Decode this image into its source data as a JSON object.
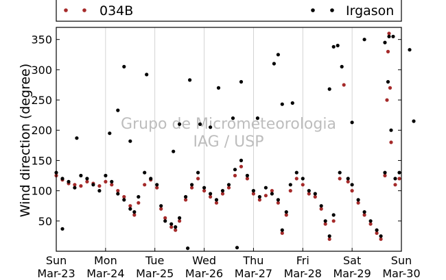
{
  "chart_data": {
    "type": "scatter",
    "ylabel": "Wind direction (degree)",
    "xlabel": "",
    "ylim": [
      0,
      370
    ],
    "xlim": [
      "2014-03-23",
      "2014-03-30"
    ],
    "yticks": [
      50,
      100,
      150,
      200,
      250,
      300,
      350
    ],
    "xticks": [
      {
        "day": "Sun",
        "date": "Mar-23"
      },
      {
        "day": "Mon",
        "date": "Mar-24"
      },
      {
        "day": "Tue",
        "date": "Mar-25"
      },
      {
        "day": "Wed",
        "date": "Mar-26"
      },
      {
        "day": "Thu",
        "date": "Mar-27"
      },
      {
        "day": "Fri",
        "date": "Mar-28"
      },
      {
        "day": "Sat",
        "date": "Mar-29"
      },
      {
        "day": "Sun",
        "date": "Mar-30"
      }
    ],
    "grid": "vertical",
    "legend": {
      "placement": "top, above plot"
    },
    "watermark": [
      "Grupo de Micrometeorologia",
      "IAG / USP"
    ],
    "series": [
      {
        "name": "034B",
        "color": "#a52a2a",
        "points": [
          [
            "2014-03-23 00:00",
            125
          ],
          [
            "2014-03-23 03:00",
            118
          ],
          [
            "2014-03-23 06:00",
            112
          ],
          [
            "2014-03-23 09:00",
            110
          ],
          [
            "2014-03-23 12:00",
            108
          ],
          [
            "2014-03-23 15:00",
            115
          ],
          [
            "2014-03-23 18:00",
            112
          ],
          [
            "2014-03-23 21:00",
            108
          ],
          [
            "2014-03-24 00:00",
            115
          ],
          [
            "2014-03-24 03:00",
            110
          ],
          [
            "2014-03-24 06:00",
            100
          ],
          [
            "2014-03-24 09:00",
            90
          ],
          [
            "2014-03-24 12:00",
            75
          ],
          [
            "2014-03-24 14:00",
            60
          ],
          [
            "2014-03-24 16:00",
            80
          ],
          [
            "2014-03-24 19:00",
            110
          ],
          [
            "2014-03-24 22:00",
            118
          ],
          [
            "2014-03-25 01:00",
            105
          ],
          [
            "2014-03-25 03:00",
            70
          ],
          [
            "2014-03-25 05:00",
            55
          ],
          [
            "2014-03-25 08:00",
            40
          ],
          [
            "2014-03-25 10:00",
            35
          ],
          [
            "2014-03-25 12:00",
            50
          ],
          [
            "2014-03-25 15:00",
            85
          ],
          [
            "2014-03-25 18:00",
            105
          ],
          [
            "2014-03-25 21:00",
            120
          ],
          [
            "2014-03-26 00:00",
            100
          ],
          [
            "2014-03-26 03:00",
            90
          ],
          [
            "2014-03-26 06:00",
            80
          ],
          [
            "2014-03-26 09:00",
            95
          ],
          [
            "2014-03-26 12:00",
            105
          ],
          [
            "2014-03-26 15:00",
            125
          ],
          [
            "2014-03-26 18:00",
            140
          ],
          [
            "2014-03-26 21:00",
            120
          ],
          [
            "2014-03-27 00:00",
            95
          ],
          [
            "2014-03-27 03:00",
            85
          ],
          [
            "2014-03-27 06:00",
            92
          ],
          [
            "2014-03-27 09:00",
            100
          ],
          [
            "2014-03-27 12:00",
            80
          ],
          [
            "2014-03-27 14:00",
            30
          ],
          [
            "2014-03-27 16:00",
            60
          ],
          [
            "2014-03-27 18:00",
            100
          ],
          [
            "2014-03-27 21:00",
            120
          ],
          [
            "2014-03-28 00:00",
            110
          ],
          [
            "2014-03-28 03:00",
            95
          ],
          [
            "2014-03-28 06:00",
            90
          ],
          [
            "2014-03-28 09:00",
            70
          ],
          [
            "2014-03-28 11:00",
            45
          ],
          [
            "2014-03-28 13:00",
            20
          ],
          [
            "2014-03-28 15:00",
            50
          ],
          [
            "2014-03-28 18:00",
            120
          ],
          [
            "2014-03-28 20:00",
            275
          ],
          [
            "2014-03-28 22:00",
            115
          ],
          [
            "2014-03-29 00:00",
            100
          ],
          [
            "2014-03-29 03:00",
            80
          ],
          [
            "2014-03-29 06:00",
            60
          ],
          [
            "2014-03-29 09:00",
            45
          ],
          [
            "2014-03-29 12:00",
            30
          ],
          [
            "2014-03-29 14:00",
            20
          ],
          [
            "2014-03-29 16:00",
            125
          ],
          [
            "2014-03-29 17:00",
            250
          ],
          [
            "2014-03-29 17:30",
            330
          ],
          [
            "2014-03-29 18:00",
            360
          ],
          [
            "2014-03-29 18:30",
            270
          ],
          [
            "2014-03-29 19:00",
            180
          ],
          [
            "2014-03-29 21:00",
            110
          ],
          [
            "2014-03-29 23:00",
            120
          ]
        ]
      },
      {
        "name": "Irgason",
        "color": "#000000",
        "points": [
          [
            "2014-03-23 00:00",
            130
          ],
          [
            "2014-03-23 03:00",
            120
          ],
          [
            "2014-03-23 06:00",
            115
          ],
          [
            "2014-03-23 09:00",
            105
          ],
          [
            "2014-03-23 12:00",
            125
          ],
          [
            "2014-03-23 15:00",
            120
          ],
          [
            "2014-03-23 18:00",
            110
          ],
          [
            "2014-03-23 21:00",
            100
          ],
          [
            "2014-03-24 00:00",
            125
          ],
          [
            "2014-03-24 03:00",
            115
          ],
          [
            "2014-03-24 06:00",
            95
          ],
          [
            "2014-03-24 09:00",
            85
          ],
          [
            "2014-03-24 12:00",
            70
          ],
          [
            "2014-03-24 14:00",
            65
          ],
          [
            "2014-03-24 16:00",
            90
          ],
          [
            "2014-03-24 19:00",
            130
          ],
          [
            "2014-03-24 22:00",
            120
          ],
          [
            "2014-03-25 01:00",
            110
          ],
          [
            "2014-03-25 03:00",
            75
          ],
          [
            "2014-03-25 05:00",
            50
          ],
          [
            "2014-03-25 08:00",
            45
          ],
          [
            "2014-03-25 10:00",
            40
          ],
          [
            "2014-03-25 12:00",
            55
          ],
          [
            "2014-03-25 15:00",
            90
          ],
          [
            "2014-03-25 18:00",
            110
          ],
          [
            "2014-03-25 21:00",
            130
          ],
          [
            "2014-03-26 00:00",
            105
          ],
          [
            "2014-03-26 03:00",
            95
          ],
          [
            "2014-03-26 06:00",
            85
          ],
          [
            "2014-03-26 09:00",
            100
          ],
          [
            "2014-03-26 12:00",
            110
          ],
          [
            "2014-03-26 15:00",
            135
          ],
          [
            "2014-03-26 18:00",
            150
          ],
          [
            "2014-03-26 21:00",
            125
          ],
          [
            "2014-03-27 00:00",
            100
          ],
          [
            "2014-03-27 03:00",
            90
          ],
          [
            "2014-03-27 06:00",
            105
          ],
          [
            "2014-03-27 09:00",
            95
          ],
          [
            "2014-03-27 12:00",
            85
          ],
          [
            "2014-03-27 14:00",
            35
          ],
          [
            "2014-03-27 16:00",
            65
          ],
          [
            "2014-03-27 18:00",
            110
          ],
          [
            "2014-03-27 21:00",
            130
          ],
          [
            "2014-03-28 00:00",
            120
          ],
          [
            "2014-03-28 03:00",
            100
          ],
          [
            "2014-03-28 06:00",
            95
          ],
          [
            "2014-03-28 09:00",
            75
          ],
          [
            "2014-03-28 11:00",
            50
          ],
          [
            "2014-03-28 13:00",
            25
          ],
          [
            "2014-03-28 15:00",
            60
          ],
          [
            "2014-03-28 18:00",
            130
          ],
          [
            "2014-03-28 22:00",
            120
          ],
          [
            "2014-03-29 00:00",
            110
          ],
          [
            "2014-03-29 03:00",
            85
          ],
          [
            "2014-03-29 06:00",
            65
          ],
          [
            "2014-03-29 09:00",
            50
          ],
          [
            "2014-03-29 12:00",
            35
          ],
          [
            "2014-03-29 14:00",
            25
          ],
          [
            "2014-03-29 16:00",
            130
          ],
          [
            "2014-03-29 17:30",
            280
          ],
          [
            "2014-03-29 18:00",
            355
          ],
          [
            "2014-03-29 19:00",
            200
          ],
          [
            "2014-03-29 21:00",
            120
          ],
          [
            "2014-03-29 23:00",
            130
          ],
          [
            "2014-03-23 03:00",
            37
          ],
          [
            "2014-03-23 10:00",
            187
          ],
          [
            "2014-03-24 02:00",
            195
          ],
          [
            "2014-03-24 06:00",
            233
          ],
          [
            "2014-03-24 09:00",
            305
          ],
          [
            "2014-03-24 12:00",
            182
          ],
          [
            "2014-03-24 20:00",
            292
          ],
          [
            "2014-03-25 09:00",
            165
          ],
          [
            "2014-03-25 12:00",
            210
          ],
          [
            "2014-03-25 16:00",
            5
          ],
          [
            "2014-03-25 17:00",
            283
          ],
          [
            "2014-03-25 22:00",
            210
          ],
          [
            "2014-03-26 03:00",
            205
          ],
          [
            "2014-03-26 07:00",
            270
          ],
          [
            "2014-03-26 14:00",
            220
          ],
          [
            "2014-03-26 16:00",
            6
          ],
          [
            "2014-03-26 18:00",
            280
          ],
          [
            "2014-03-27 02:00",
            220
          ],
          [
            "2014-03-27 10:00",
            310
          ],
          [
            "2014-03-27 12:00",
            325
          ],
          [
            "2014-03-27 14:00",
            243
          ],
          [
            "2014-03-27 19:00",
            245
          ],
          [
            "2014-03-28 13:00",
            268
          ],
          [
            "2014-03-28 15:00",
            338
          ],
          [
            "2014-03-28 17:00",
            340
          ],
          [
            "2014-03-28 19:00",
            305
          ],
          [
            "2014-03-29 00:00",
            213
          ],
          [
            "2014-03-29 06:00",
            350
          ],
          [
            "2014-03-29 16:00",
            345
          ],
          [
            "2014-03-29 20:00",
            355
          ],
          [
            "2014-03-30 04:00",
            333
          ],
          [
            "2014-03-30 06:00",
            215
          ]
        ]
      }
    ]
  }
}
